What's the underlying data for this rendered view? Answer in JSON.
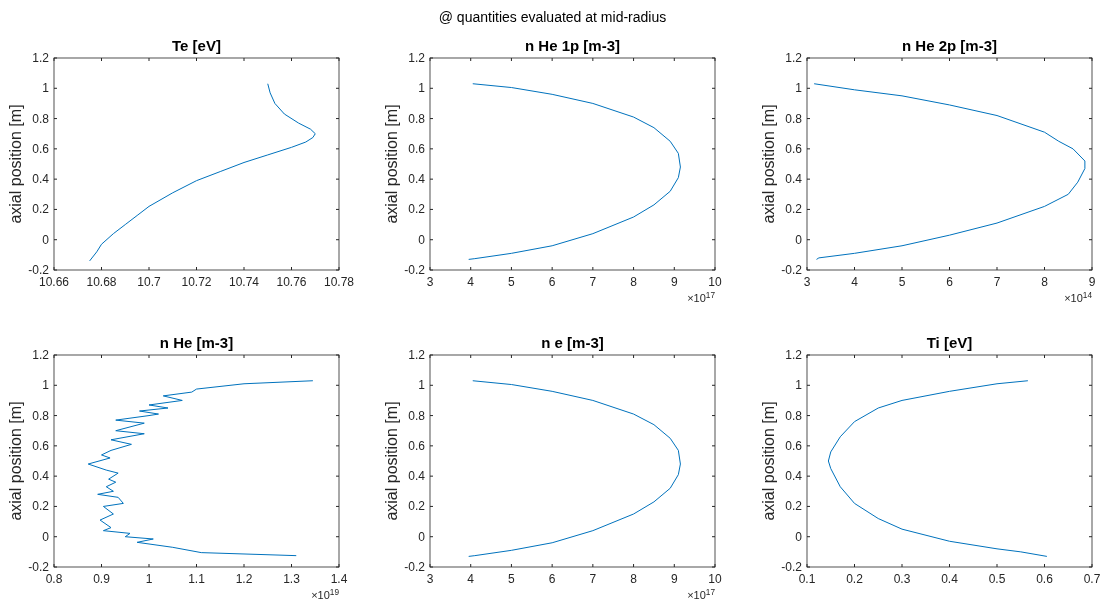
{
  "chart_data": [
    {
      "type": "line",
      "title": "Te [eV]",
      "ylabel": "axial position [m]",
      "annotations": [
        "@ quantities evaluated at mid-radius"
      ],
      "grid": false,
      "xlim": [
        10.66,
        10.78
      ],
      "xticks": [
        10.66,
        10.68,
        10.7,
        10.72,
        10.74,
        10.76,
        10.78
      ],
      "ylim": [
        -0.2,
        1.2
      ],
      "yticks": [
        -0.2,
        0,
        0.2,
        0.4,
        0.6,
        0.8,
        1,
        1.2
      ],
      "series": [
        {
          "color": "#0072bd",
          "x": [
            10.675,
            10.678,
            10.68,
            10.685,
            10.69,
            10.695,
            10.7,
            10.71,
            10.72,
            10.73,
            10.74,
            10.75,
            10.76,
            10.766,
            10.769,
            10.77,
            10.768,
            10.763,
            10.757,
            10.753,
            10.751,
            10.75
          ],
          "values": [
            -0.14,
            -0.08,
            -0.03,
            0.04,
            0.1,
            0.16,
            0.22,
            0.31,
            0.39,
            0.45,
            0.51,
            0.56,
            0.61,
            0.645,
            0.675,
            0.7,
            0.73,
            0.77,
            0.83,
            0.9,
            0.97,
            1.03
          ]
        }
      ]
    },
    {
      "type": "line",
      "title": "n He 1p [m-3]",
      "ylabel": "axial position [m]",
      "xlabel": "×10$^{17}$",
      "grid": false,
      "xlim": [
        3,
        10
      ],
      "xticks": [
        3,
        4,
        5,
        6,
        7,
        8,
        9,
        10
      ],
      "ylim": [
        -0.2,
        1.2
      ],
      "yticks": [
        -0.2,
        0,
        0.2,
        0.4,
        0.6,
        0.8,
        1,
        1.2
      ],
      "series": [
        {
          "color": "#0072bd",
          "x": [
            3.95,
            4.1,
            5,
            6,
            7,
            8,
            8.5,
            8.9,
            9.1,
            9.15,
            9.1,
            8.9,
            8.5,
            8,
            7,
            6,
            5,
            4.05
          ],
          "values": [
            -0.13,
            -0.125,
            -0.09,
            -0.04,
            0.04,
            0.15,
            0.23,
            0.32,
            0.41,
            0.48,
            0.57,
            0.65,
            0.74,
            0.81,
            0.9,
            0.96,
            1.005,
            1.03
          ]
        }
      ]
    },
    {
      "type": "line",
      "title": "n He 2p [m-3]",
      "ylabel": "axial position [m]",
      "xlabel": "×10$^{14}$",
      "grid": false,
      "xlim": [
        3,
        9
      ],
      "xticks": [
        3,
        4,
        5,
        6,
        7,
        8,
        9
      ],
      "ylim": [
        -0.2,
        1.2
      ],
      "yticks": [
        -0.2,
        0,
        0.2,
        0.4,
        0.6,
        0.8,
        1,
        1.2
      ],
      "series": [
        {
          "color": "#0072bd",
          "x": [
            3.2,
            3.25,
            4,
            5,
            6,
            7,
            8,
            8.5,
            8.7,
            8.85,
            8.85,
            8.6,
            8.3,
            8,
            7,
            6,
            5,
            4,
            3.15
          ],
          "values": [
            -0.13,
            -0.12,
            -0.09,
            -0.04,
            0.03,
            0.11,
            0.22,
            0.3,
            0.38,
            0.47,
            0.52,
            0.6,
            0.65,
            0.71,
            0.82,
            0.89,
            0.95,
            0.99,
            1.03
          ]
        }
      ]
    },
    {
      "type": "line",
      "title": "n He [m-3]",
      "ylabel": "axial position [m]",
      "xlabel": "×10$^{19}$",
      "grid": false,
      "xlim": [
        0.8,
        1.4
      ],
      "xticks": [
        0.8,
        0.9,
        1,
        1.1,
        1.2,
        1.3,
        1.4
      ],
      "ylim": [
        -0.2,
        1.2
      ],
      "yticks": [
        -0.2,
        0,
        0.2,
        0.4,
        0.6,
        0.8,
        1,
        1.2
      ],
      "series": [
        {
          "color": "#0072bd",
          "x": [
            1.31,
            1.11,
            1.05,
            0.975,
            1.009,
            0.95,
            0.96,
            0.904,
            0.92,
            0.897,
            0.925,
            0.904,
            0.946,
            0.935,
            0.892,
            0.925,
            0.91,
            0.93,
            0.915,
            0.935,
            0.91,
            0.872,
            0.918,
            0.9,
            0.92,
            0.963,
            0.92,
            0.99,
            0.93,
            0.99,
            0.93,
            1.0,
            1.02,
            0.98,
            1.04,
            1.0,
            1.07,
            1.03,
            1.09,
            1.1,
            1.2,
            1.345
          ],
          "values": [
            -0.125,
            -0.105,
            -0.07,
            -0.037,
            -0.015,
            0.0,
            0.022,
            0.04,
            0.06,
            0.11,
            0.15,
            0.2,
            0.22,
            0.26,
            0.28,
            0.3,
            0.33,
            0.36,
            0.38,
            0.42,
            0.44,
            0.48,
            0.52,
            0.54,
            0.57,
            0.61,
            0.64,
            0.68,
            0.7,
            0.75,
            0.77,
            0.8,
            0.81,
            0.83,
            0.85,
            0.87,
            0.9,
            0.93,
            0.955,
            0.975,
            1.01,
            1.03
          ]
        }
      ]
    },
    {
      "type": "line",
      "title": "n e [m-3]",
      "ylabel": "axial position [m]",
      "xlabel": "×10$^{17}$",
      "grid": false,
      "xlim": [
        3,
        10
      ],
      "xticks": [
        3,
        4,
        5,
        6,
        7,
        8,
        9,
        10
      ],
      "ylim": [
        -0.2,
        1.2
      ],
      "yticks": [
        -0.2,
        0,
        0.2,
        0.4,
        0.6,
        0.8,
        1,
        1.2
      ],
      "series": [
        {
          "color": "#0072bd",
          "x": [
            3.95,
            4.1,
            5,
            6,
            7,
            8,
            8.5,
            8.9,
            9.1,
            9.15,
            9.1,
            8.9,
            8.5,
            8,
            7,
            6,
            5,
            4.05
          ],
          "values": [
            -0.13,
            -0.125,
            -0.09,
            -0.04,
            0.04,
            0.15,
            0.23,
            0.32,
            0.41,
            0.48,
            0.57,
            0.65,
            0.74,
            0.81,
            0.9,
            0.96,
            1.005,
            1.03
          ]
        }
      ]
    },
    {
      "type": "line",
      "title": "Ti [eV]",
      "ylabel": "axial position [m]",
      "grid": false,
      "xlim": [
        0.1,
        0.7
      ],
      "xticks": [
        0.1,
        0.2,
        0.3,
        0.4,
        0.5,
        0.6,
        0.7
      ],
      "ylim": [
        -0.2,
        1.2
      ],
      "yticks": [
        -0.2,
        0,
        0.2,
        0.4,
        0.6,
        0.8,
        1,
        1.2
      ],
      "series": [
        {
          "color": "#0072bd",
          "x": [
            0.605,
            0.55,
            0.5,
            0.4,
            0.3,
            0.25,
            0.2,
            0.17,
            0.15,
            0.145,
            0.15,
            0.17,
            0.2,
            0.25,
            0.3,
            0.4,
            0.5,
            0.565
          ],
          "values": [
            -0.13,
            -0.1,
            -0.08,
            -0.03,
            0.05,
            0.12,
            0.22,
            0.33,
            0.45,
            0.5,
            0.56,
            0.66,
            0.76,
            0.85,
            0.9,
            0.96,
            1.01,
            1.03
          ]
        }
      ]
    }
  ]
}
